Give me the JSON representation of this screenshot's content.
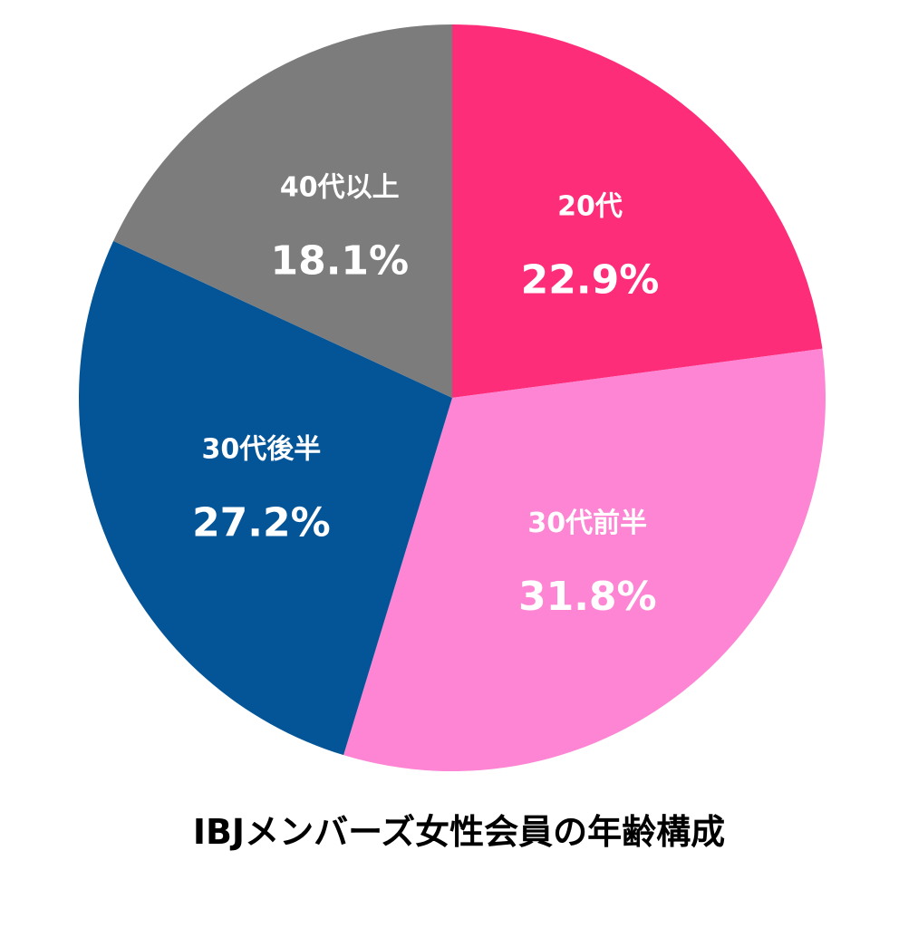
{
  "chart_data": {
    "type": "pie",
    "title": "IBJメンバーズ女性会員の年齢構成",
    "start_angle_deg": 0,
    "direction": "clockwise",
    "legend": "none",
    "slices": [
      {
        "label": "20代",
        "value": 22.9,
        "value_label": "22.9%",
        "color": "#fe2d7a"
      },
      {
        "label": "30代前半",
        "value": 31.8,
        "value_label": "31.8%",
        "color": "#fe84d4"
      },
      {
        "label": "30代後半",
        "value": 27.2,
        "value_label": "27.2%",
        "color": "#045598"
      },
      {
        "label": "40代以上",
        "value": 18.1,
        "value_label": "18.1%",
        "color": "#7c7c7c"
      }
    ]
  }
}
